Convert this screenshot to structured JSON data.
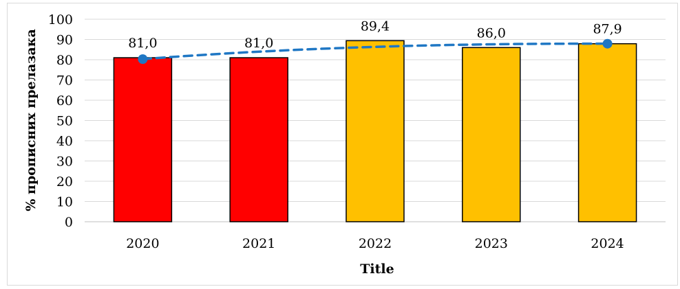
{
  "chart_data": {
    "type": "bar",
    "title": "",
    "xlabel": "Title",
    "ylabel": "% прописних прелазака",
    "categories": [
      "2020",
      "2021",
      "2022",
      "2023",
      "2024"
    ],
    "values": [
      81.0,
      81.0,
      89.4,
      86.0,
      87.9
    ],
    "value_labels": [
      "81,0",
      "81,0",
      "89,4",
      "86,0",
      "87,9"
    ],
    "bar_colors": [
      "#ff0000",
      "#ff0000",
      "#ffc000",
      "#ffc000",
      "#ffc000"
    ],
    "bar_edge_color": "#000000",
    "trendline": {
      "style": "dashed",
      "color": "#1f77c4",
      "marker_values": [
        {
          "category": "2020",
          "value": 80.3
        },
        {
          "category": "2024",
          "value": 87.9
        }
      ]
    },
    "ylim": [
      0,
      100
    ],
    "yticks": [
      0,
      10,
      20,
      30,
      40,
      50,
      60,
      70,
      80,
      90,
      100
    ],
    "grid": true,
    "grid_color": "#d9d9d9",
    "legend": "none"
  }
}
